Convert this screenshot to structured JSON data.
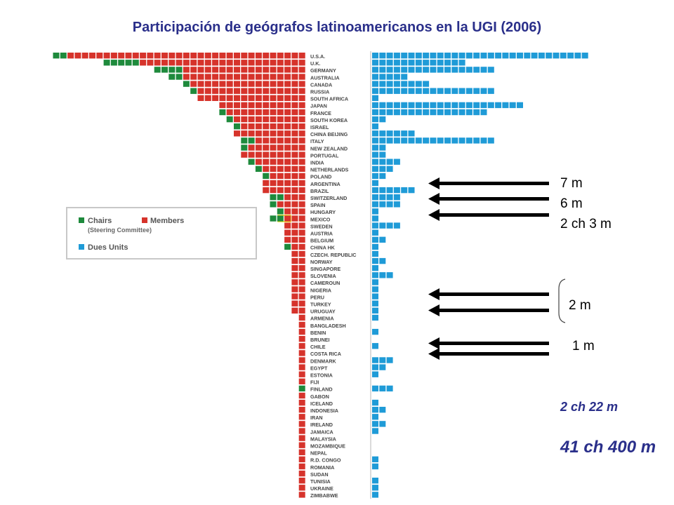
{
  "title": "Participación de geógrafos latinoamericanos en la UGI (2006)",
  "colors": {
    "chairs": "#1e8a3c",
    "members": "#d6332b",
    "dues": "#1f9bd7",
    "title": "#2a2f8a"
  },
  "legend": {
    "chairs": "Chairs",
    "members": "Members",
    "steering": "(Steering Committee)",
    "dues": "Dues Units"
  },
  "annotations": {
    "a1": "7 m",
    "a2": "6 m",
    "a3": "2 ch 3 m",
    "a4": "2 m",
    "a5": "1 m",
    "sum1": "2 ch 22 m",
    "sum2": "41 ch 400 m"
  },
  "chart_data": {
    "type": "bar",
    "categories": [
      "U.S.A.",
      "U.K.",
      "GERMANY",
      "AUSTRALIA",
      "CANADA",
      "RUSSIA",
      "SOUTH AFRICA",
      "JAPAN",
      "FRANCE",
      "SOUTH KOREA",
      "ISRAEL",
      "CHINA BEIJING",
      "ITALY",
      "NEW ZEALAND",
      "PORTUGAL",
      "INDIA",
      "NETHERLANDS",
      "POLAND",
      "ARGENTINA",
      "BRAZIL",
      "SWITZERLAND",
      "SPAIN",
      "HUNGARY",
      "MEXICO",
      "SWEDEN",
      "AUSTRIA",
      "BELGIUM",
      "CHINA HK",
      "CZECH. REPUBLIC",
      "NORWAY",
      "SINGAPORE",
      "SLOVENIA",
      "CAMEROUN",
      "NIGERIA",
      "PERU",
      "TURKEY",
      "URUGUAY",
      "ARMENIA",
      "BANGLADESH",
      "BENIN",
      "BRUNEI",
      "CHILE",
      "COSTA RICA",
      "DENMARK",
      "EGYPT",
      "ESTONIA",
      "FIJI",
      "FINLAND",
      "GABON",
      "ICELAND",
      "INDONESIA",
      "IRAN",
      "IRELAND",
      "JAMAICA",
      "MALAYSIA",
      "MOZAMBIQUE",
      "NEPAL",
      "R.D. CONGO",
      "ROMANIA",
      "SUDAN",
      "TUNISIA",
      "UKRAINE",
      "ZIMBABWE"
    ],
    "series": [
      {
        "name": "Chairs",
        "values": [
          2,
          5,
          4,
          2,
          1,
          1,
          0,
          0,
          1,
          1,
          1,
          0,
          2,
          1,
          0,
          1,
          1,
          1,
          0,
          0,
          2,
          1,
          1,
          2,
          0,
          0,
          0,
          1,
          0,
          0,
          0,
          0,
          0,
          0,
          0,
          0,
          0,
          0,
          0,
          0,
          0,
          0,
          0,
          0,
          0,
          0,
          0,
          1,
          0,
          0,
          0,
          0,
          0,
          0,
          0,
          0,
          0,
          0,
          0,
          0,
          0,
          0,
          0
        ]
      },
      {
        "name": "Members",
        "values": [
          33,
          23,
          17,
          17,
          16,
          15,
          15,
          12,
          11,
          10,
          9,
          10,
          7,
          8,
          9,
          7,
          6,
          5,
          6,
          6,
          3,
          4,
          3,
          3,
          3,
          3,
          3,
          2,
          2,
          2,
          2,
          2,
          2,
          2,
          2,
          2,
          2,
          1,
          1,
          1,
          1,
          1,
          1,
          1,
          1,
          1,
          1,
          0,
          1,
          1,
          1,
          1,
          1,
          1,
          1,
          1,
          1,
          1,
          1,
          1,
          1,
          1,
          1
        ]
      },
      {
        "name": "Dues Units",
        "values": [
          30,
          13,
          17,
          5,
          8,
          17,
          1,
          21,
          16,
          2,
          1,
          6,
          17,
          2,
          2,
          4,
          3,
          2,
          1,
          6,
          4,
          4,
          1,
          1,
          4,
          1,
          2,
          1,
          1,
          2,
          1,
          3,
          1,
          1,
          1,
          1,
          1,
          1,
          0,
          1,
          0,
          1,
          0,
          3,
          2,
          1,
          0,
          3,
          0,
          1,
          2,
          1,
          2,
          1,
          0,
          0,
          0,
          1,
          1,
          0,
          1,
          1,
          1
        ]
      }
    ],
    "legend": "left"
  }
}
